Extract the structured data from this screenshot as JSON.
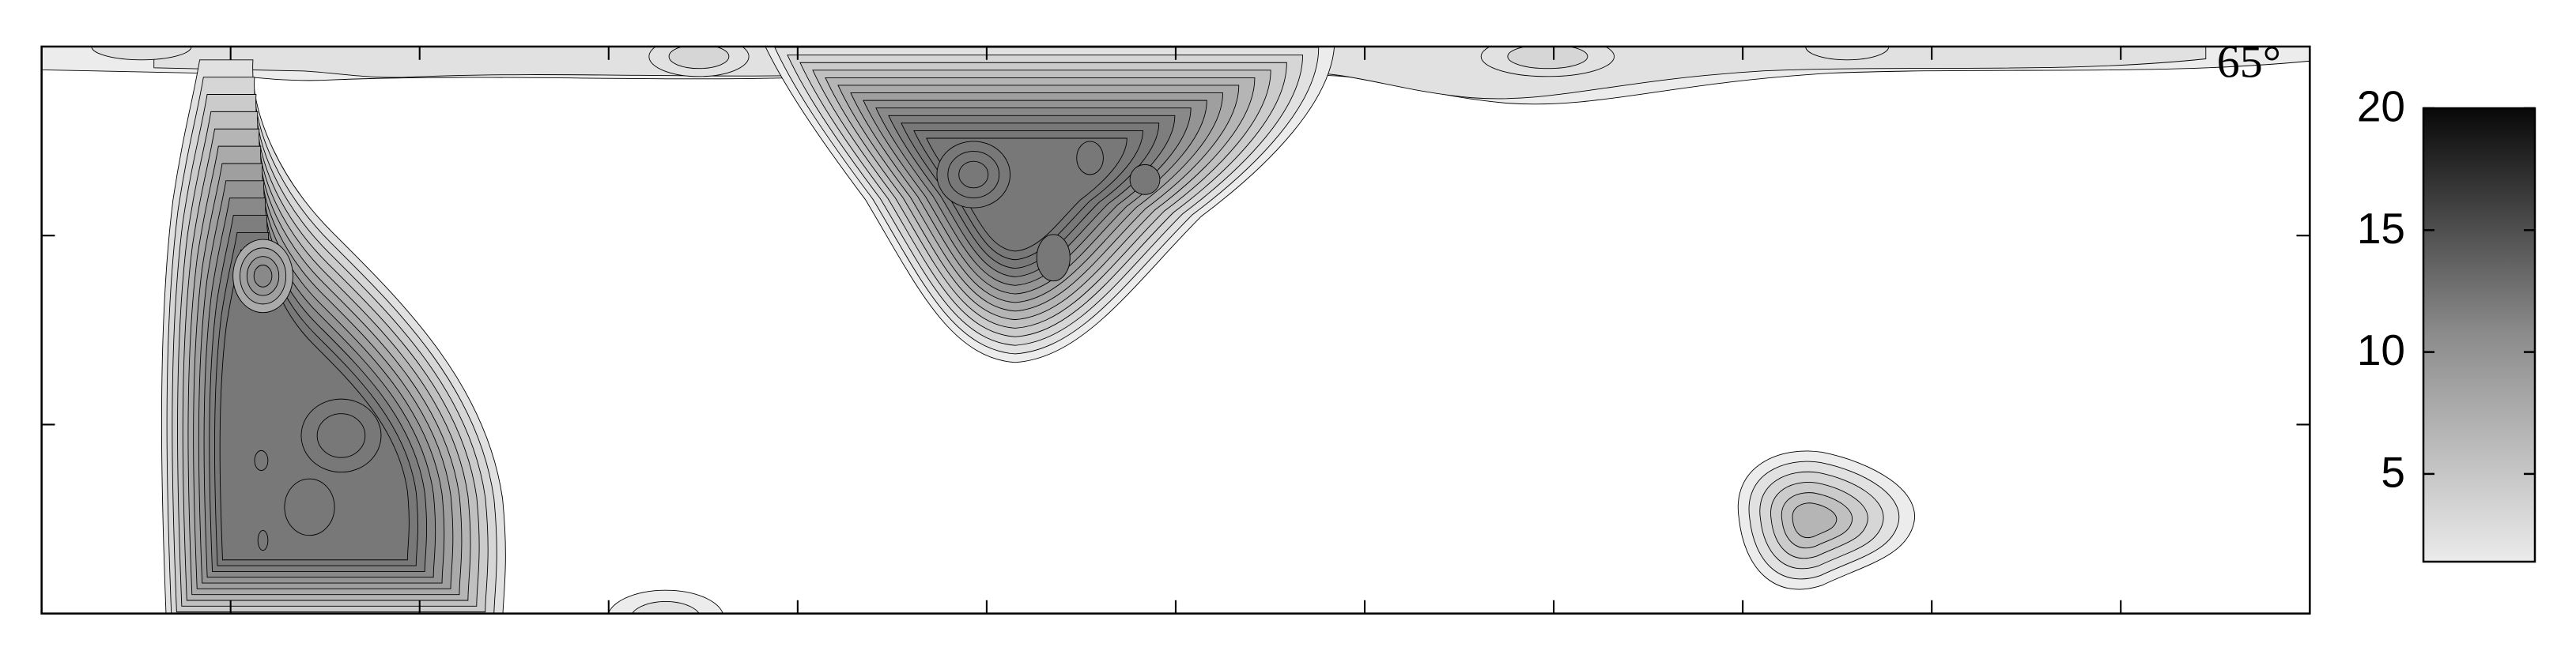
{
  "chart_data": {
    "type": "contour",
    "annotation": "65°",
    "colorbar": {
      "clim": [
        1.4,
        20
      ],
      "ticks": [
        5,
        10,
        15,
        20
      ]
    }
  }
}
